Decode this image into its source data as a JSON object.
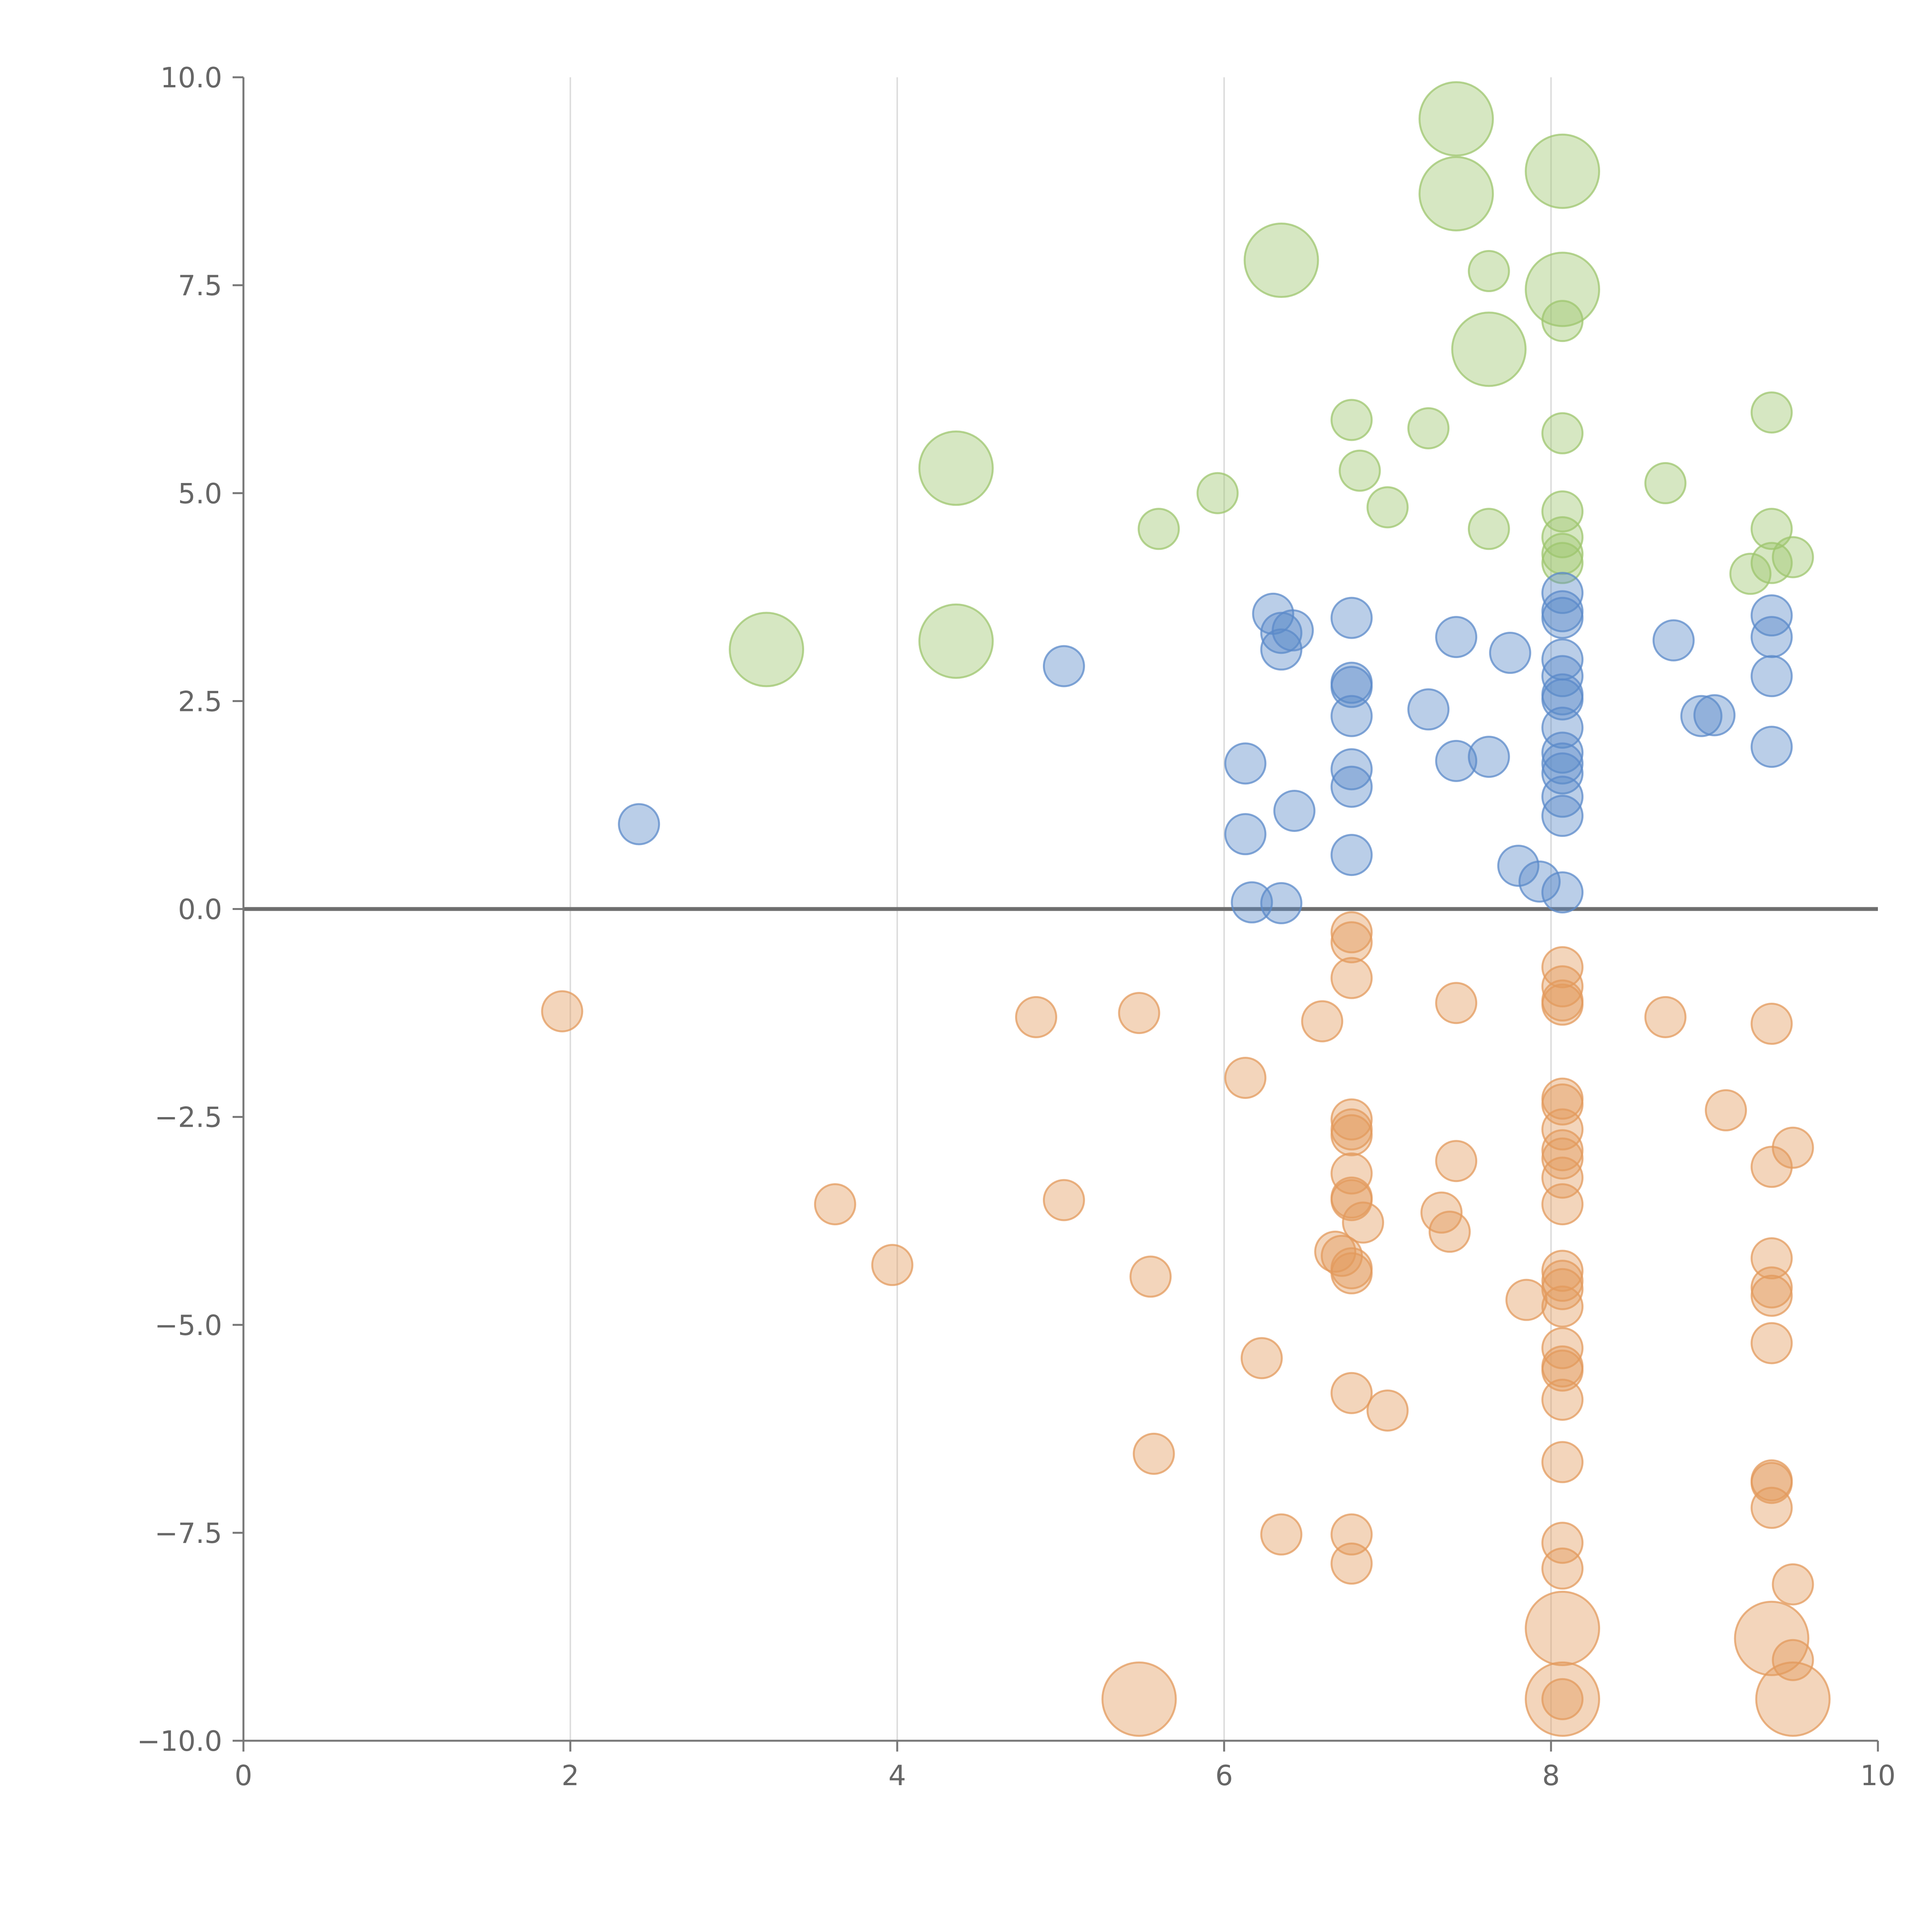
{
  "chart_data": {
    "type": "scatter",
    "title": "",
    "xlabel": "",
    "ylabel": "",
    "xlim": [
      0,
      10
    ],
    "ylim": [
      -10,
      10
    ],
    "x_ticks": [
      "0",
      "2",
      "4",
      "6",
      "8",
      "10"
    ],
    "y_ticks": [
      "10.0",
      "7.5",
      "5.0",
      "2.5",
      "0.0",
      "−2.5",
      "−5.0",
      "−7.5",
      "−10.0"
    ],
    "x_tick_values": [
      0,
      2,
      4,
      6,
      8,
      10
    ],
    "y_tick_values": [
      10,
      7.5,
      5,
      2.5,
      0,
      -2.5,
      -5,
      -7.5,
      -10
    ],
    "vertical_gridlines_at": [
      2,
      4,
      6,
      8
    ],
    "zero_line": true,
    "colors": {
      "green": "#9dc56e",
      "blue": "#5b8ac9",
      "orange": "#e39a5c"
    },
    "series": [
      {
        "name": "green",
        "color": "#9dc56e",
        "points": [
          {
            "x": 7.42,
            "y": 9.5,
            "s": 2
          },
          {
            "x": 7.42,
            "y": 8.6,
            "s": 2
          },
          {
            "x": 8.07,
            "y": 8.87,
            "s": 2
          },
          {
            "x": 6.35,
            "y": 7.8,
            "s": 2
          },
          {
            "x": 7.62,
            "y": 7.67,
            "s": 1
          },
          {
            "x": 8.07,
            "y": 7.45,
            "s": 2
          },
          {
            "x": 8.07,
            "y": 7.07,
            "s": 1
          },
          {
            "x": 7.62,
            "y": 6.73,
            "s": 2
          },
          {
            "x": 6.78,
            "y": 5.88,
            "s": 1
          },
          {
            "x": 7.25,
            "y": 5.78,
            "s": 1
          },
          {
            "x": 8.07,
            "y": 5.72,
            "s": 1
          },
          {
            "x": 9.35,
            "y": 5.97,
            "s": 1
          },
          {
            "x": 4.36,
            "y": 5.3,
            "s": 2
          },
          {
            "x": 5.96,
            "y": 5.0,
            "s": 1
          },
          {
            "x": 6.83,
            "y": 5.27,
            "s": 1
          },
          {
            "x": 7.0,
            "y": 4.83,
            "s": 1
          },
          {
            "x": 8.7,
            "y": 5.12,
            "s": 1
          },
          {
            "x": 5.6,
            "y": 4.57,
            "s": 1
          },
          {
            "x": 7.62,
            "y": 4.57,
            "s": 1
          },
          {
            "x": 8.07,
            "y": 4.78,
            "s": 1
          },
          {
            "x": 8.07,
            "y": 4.47,
            "s": 1
          },
          {
            "x": 8.07,
            "y": 4.27,
            "s": 1
          },
          {
            "x": 8.07,
            "y": 4.16,
            "s": 1
          },
          {
            "x": 9.35,
            "y": 4.57,
            "s": 1
          },
          {
            "x": 9.35,
            "y": 4.16,
            "s": 1
          },
          {
            "x": 9.48,
            "y": 4.23,
            "s": 1
          },
          {
            "x": 9.22,
            "y": 4.03,
            "s": 1
          },
          {
            "x": 3.2,
            "y": 3.12,
            "s": 2
          },
          {
            "x": 4.36,
            "y": 3.22,
            "s": 2
          }
        ]
      },
      {
        "name": "blue",
        "color": "#5b8ac9",
        "points": [
          {
            "x": 2.42,
            "y": 1.02,
            "s": 1
          },
          {
            "x": 5.02,
            "y": 2.92,
            "s": 1
          },
          {
            "x": 6.3,
            "y": 3.55,
            "s": 1
          },
          {
            "x": 6.35,
            "y": 3.32,
            "s": 1
          },
          {
            "x": 6.35,
            "y": 3.12,
            "s": 1
          },
          {
            "x": 6.42,
            "y": 3.35,
            "s": 1
          },
          {
            "x": 6.78,
            "y": 3.5,
            "s": 1
          },
          {
            "x": 7.42,
            "y": 3.27,
            "s": 1
          },
          {
            "x": 7.75,
            "y": 3.08,
            "s": 1
          },
          {
            "x": 8.07,
            "y": 3.8,
            "s": 1
          },
          {
            "x": 8.07,
            "y": 3.58,
            "s": 1
          },
          {
            "x": 8.07,
            "y": 3.5,
            "s": 1
          },
          {
            "x": 8.75,
            "y": 3.23,
            "s": 1
          },
          {
            "x": 9.35,
            "y": 3.53,
            "s": 1
          },
          {
            "x": 9.35,
            "y": 3.27,
            "s": 1
          },
          {
            "x": 8.07,
            "y": 3.0,
            "s": 1
          },
          {
            "x": 8.07,
            "y": 2.8,
            "s": 1
          },
          {
            "x": 8.07,
            "y": 2.58,
            "s": 1
          },
          {
            "x": 8.07,
            "y": 2.52,
            "s": 1
          },
          {
            "x": 8.07,
            "y": 2.18,
            "s": 1
          },
          {
            "x": 9.35,
            "y": 2.8,
            "s": 1
          },
          {
            "x": 6.78,
            "y": 2.72,
            "s": 1
          },
          {
            "x": 6.78,
            "y": 2.67,
            "s": 1
          },
          {
            "x": 6.78,
            "y": 2.32,
            "s": 1
          },
          {
            "x": 7.25,
            "y": 2.4,
            "s": 1
          },
          {
            "x": 8.92,
            "y": 2.32,
            "s": 1
          },
          {
            "x": 9.0,
            "y": 2.33,
            "s": 1
          },
          {
            "x": 9.35,
            "y": 1.95,
            "s": 1
          },
          {
            "x": 6.13,
            "y": 1.75,
            "s": 1
          },
          {
            "x": 6.78,
            "y": 1.68,
            "s": 1
          },
          {
            "x": 6.78,
            "y": 1.47,
            "s": 1
          },
          {
            "x": 7.42,
            "y": 1.78,
            "s": 1
          },
          {
            "x": 7.62,
            "y": 1.83,
            "s": 1
          },
          {
            "x": 8.07,
            "y": 1.88,
            "s": 1
          },
          {
            "x": 8.07,
            "y": 1.75,
            "s": 1
          },
          {
            "x": 8.07,
            "y": 1.63,
            "s": 1
          },
          {
            "x": 8.07,
            "y": 1.35,
            "s": 1
          },
          {
            "x": 8.07,
            "y": 1.12,
            "s": 1
          },
          {
            "x": 6.43,
            "y": 1.18,
            "s": 1
          },
          {
            "x": 6.13,
            "y": 0.9,
            "s": 1
          },
          {
            "x": 6.78,
            "y": 0.65,
            "s": 1
          },
          {
            "x": 7.8,
            "y": 0.52,
            "s": 1
          },
          {
            "x": 7.93,
            "y": 0.33,
            "s": 1
          },
          {
            "x": 8.07,
            "y": 0.2,
            "s": 1
          },
          {
            "x": 6.17,
            "y": 0.08,
            "s": 1
          },
          {
            "x": 6.35,
            "y": 0.07,
            "s": 1
          }
        ]
      },
      {
        "name": "orange",
        "color": "#e39a5c",
        "points": [
          {
            "x": 1.95,
            "y": -1.23,
            "s": 1
          },
          {
            "x": 4.85,
            "y": -1.3,
            "s": 1
          },
          {
            "x": 5.48,
            "y": -1.25,
            "s": 1
          },
          {
            "x": 6.6,
            "y": -1.35,
            "s": 1
          },
          {
            "x": 6.78,
            "y": -0.28,
            "s": 1
          },
          {
            "x": 6.78,
            "y": -0.4,
            "s": 1
          },
          {
            "x": 6.78,
            "y": -0.83,
            "s": 1
          },
          {
            "x": 7.42,
            "y": -1.13,
            "s": 1
          },
          {
            "x": 8.07,
            "y": -0.7,
            "s": 1
          },
          {
            "x": 8.07,
            "y": -0.93,
            "s": 1
          },
          {
            "x": 8.07,
            "y": -1.1,
            "s": 1
          },
          {
            "x": 8.07,
            "y": -1.15,
            "s": 1
          },
          {
            "x": 8.7,
            "y": -1.3,
            "s": 1
          },
          {
            "x": 9.35,
            "y": -1.38,
            "s": 1
          },
          {
            "x": 6.13,
            "y": -2.03,
            "s": 1
          },
          {
            "x": 6.78,
            "y": -2.53,
            "s": 1
          },
          {
            "x": 6.78,
            "y": -2.65,
            "s": 1
          },
          {
            "x": 6.78,
            "y": -2.72,
            "s": 1
          },
          {
            "x": 8.07,
            "y": -2.28,
            "s": 1
          },
          {
            "x": 8.07,
            "y": -2.35,
            "s": 1
          },
          {
            "x": 8.07,
            "y": -2.65,
            "s": 1
          },
          {
            "x": 8.07,
            "y": -2.9,
            "s": 1
          },
          {
            "x": 8.07,
            "y": -3.0,
            "s": 1
          },
          {
            "x": 9.07,
            "y": -2.42,
            "s": 1
          },
          {
            "x": 9.48,
            "y": -2.87,
            "s": 1
          },
          {
            "x": 9.35,
            "y": -3.1,
            "s": 1
          },
          {
            "x": 7.42,
            "y": -3.03,
            "s": 1
          },
          {
            "x": 6.78,
            "y": -3.18,
            "s": 1
          },
          {
            "x": 8.07,
            "y": -3.23,
            "s": 1
          },
          {
            "x": 3.62,
            "y": -3.55,
            "s": 1
          },
          {
            "x": 5.02,
            "y": -3.5,
            "s": 1
          },
          {
            "x": 6.78,
            "y": -3.47,
            "s": 1
          },
          {
            "x": 6.78,
            "y": -3.5,
            "s": 1
          },
          {
            "x": 6.85,
            "y": -3.77,
            "s": 1
          },
          {
            "x": 7.33,
            "y": -3.65,
            "s": 1
          },
          {
            "x": 7.38,
            "y": -3.88,
            "s": 1
          },
          {
            "x": 8.07,
            "y": -3.55,
            "s": 1
          },
          {
            "x": 3.97,
            "y": -4.28,
            "s": 1
          },
          {
            "x": 5.55,
            "y": -4.42,
            "s": 1
          },
          {
            "x": 6.68,
            "y": -4.12,
            "s": 1
          },
          {
            "x": 6.72,
            "y": -4.17,
            "s": 1
          },
          {
            "x": 6.78,
            "y": -4.32,
            "s": 1
          },
          {
            "x": 6.78,
            "y": -4.38,
            "s": 1
          },
          {
            "x": 7.85,
            "y": -4.7,
            "s": 1
          },
          {
            "x": 8.07,
            "y": -4.35,
            "s": 1
          },
          {
            "x": 8.07,
            "y": -4.47,
            "s": 1
          },
          {
            "x": 8.07,
            "y": -4.57,
            "s": 1
          },
          {
            "x": 8.07,
            "y": -4.78,
            "s": 1
          },
          {
            "x": 9.35,
            "y": -4.2,
            "s": 1
          },
          {
            "x": 9.35,
            "y": -4.55,
            "s": 1
          },
          {
            "x": 9.35,
            "y": -4.65,
            "s": 1
          },
          {
            "x": 6.23,
            "y": -5.4,
            "s": 1
          },
          {
            "x": 8.07,
            "y": -5.28,
            "s": 1
          },
          {
            "x": 8.07,
            "y": -5.5,
            "s": 1
          },
          {
            "x": 8.07,
            "y": -5.55,
            "s": 1
          },
          {
            "x": 8.07,
            "y": -5.9,
            "s": 1
          },
          {
            "x": 9.35,
            "y": -5.22,
            "s": 1
          },
          {
            "x": 6.78,
            "y": -5.82,
            "s": 1
          },
          {
            "x": 7.0,
            "y": -6.03,
            "s": 1
          },
          {
            "x": 5.57,
            "y": -6.55,
            "s": 1
          },
          {
            "x": 8.07,
            "y": -6.65,
            "s": 1
          },
          {
            "x": 9.35,
            "y": -6.87,
            "s": 1
          },
          {
            "x": 9.35,
            "y": -6.9,
            "s": 1
          },
          {
            "x": 9.35,
            "y": -7.2,
            "s": 1
          },
          {
            "x": 6.35,
            "y": -7.52,
            "s": 1
          },
          {
            "x": 6.78,
            "y": -7.52,
            "s": 1
          },
          {
            "x": 6.78,
            "y": -7.87,
            "s": 1
          },
          {
            "x": 8.07,
            "y": -7.62,
            "s": 1
          },
          {
            "x": 8.07,
            "y": -7.93,
            "s": 1
          },
          {
            "x": 9.48,
            "y": -8.12,
            "s": 1
          },
          {
            "x": 8.07,
            "y": -8.65,
            "s": 2
          },
          {
            "x": 9.35,
            "y": -8.77,
            "s": 2
          },
          {
            "x": 9.48,
            "y": -9.03,
            "s": 1
          },
          {
            "x": 5.48,
            "y": -9.5,
            "s": 2
          },
          {
            "x": 8.07,
            "y": -9.5,
            "s": 2
          },
          {
            "x": 8.07,
            "y": -9.5,
            "s": 1
          },
          {
            "x": 9.48,
            "y": -9.5,
            "s": 2
          }
        ]
      }
    ]
  }
}
